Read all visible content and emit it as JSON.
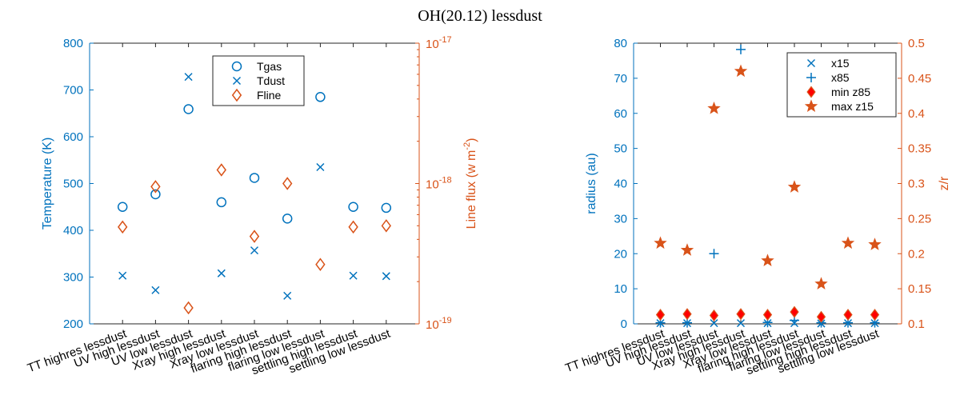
{
  "title": "OH(20.12) lessdust",
  "colors": {
    "blue": "#0072BD",
    "orange": "#D95319",
    "axis": "#262626",
    "diamond_fill": "#FF0000"
  },
  "categories": [
    "TT highres lessdust",
    "UV high lessdust",
    "UV low lessdust",
    "Xray high lessdust",
    "Xray low lessdust",
    "flaring high lessdust",
    "flaring low lessdust",
    "settling high lessdust",
    "settling low lessdust"
  ],
  "chart_data": [
    {
      "type": "scatter",
      "left_axis": {
        "label": "Temperature (K)",
        "ylim": [
          200,
          800
        ],
        "ticks": [
          "200",
          "300",
          "400",
          "500",
          "600",
          "700",
          "800"
        ]
      },
      "right_axis": {
        "label_main": "Line flux (w m",
        "label_sup": "-2",
        "label_close": ")",
        "scale": "log",
        "ylim": [
          1e-19,
          1e-17
        ],
        "ticks": [
          {
            "value": 1e-19,
            "base": "10",
            "exp": "-19"
          },
          {
            "value": 1e-18,
            "base": "10",
            "exp": "-18"
          },
          {
            "value": 1e-17,
            "base": "10",
            "exp": "-17"
          }
        ]
      },
      "legend": {
        "position": "top-right",
        "entries": [
          "Tgas",
          "Tdust",
          "Fline"
        ]
      },
      "series": [
        {
          "name": "Tgas",
          "marker": "circle",
          "axis": "left",
          "values": [
            450,
            477,
            659,
            460,
            512,
            425,
            685,
            450,
            448
          ]
        },
        {
          "name": "Tdust",
          "marker": "x",
          "axis": "left",
          "values": [
            303,
            272,
            728,
            308,
            357,
            260,
            535,
            303,
            302
          ]
        },
        {
          "name": "Fline",
          "marker": "diamond",
          "axis": "right",
          "values": [
            4.9e-19,
            9.5e-19,
            1.3e-19,
            1.25e-18,
            4.2e-19,
            1e-18,
            2.65e-19,
            4.9e-19,
            5e-19
          ]
        }
      ]
    },
    {
      "type": "scatter",
      "left_axis": {
        "label": "radius (au)",
        "ylim": [
          0,
          80
        ],
        "ticks": [
          "0",
          "10",
          "20",
          "30",
          "40",
          "50",
          "60",
          "70",
          "80"
        ]
      },
      "right_axis": {
        "label": "z/r",
        "ylim": [
          0.1,
          0.5
        ],
        "ticks": [
          "0.1",
          "0.15",
          "0.2",
          "0.25",
          "0.3",
          "0.35",
          "0.4",
          "0.45",
          "0.5"
        ]
      },
      "legend": {
        "position": "top-right",
        "entries": [
          "x15",
          "x85",
          "min z85",
          "max z15"
        ]
      },
      "series": [
        {
          "name": "x15",
          "marker": "x",
          "axis": "left",
          "values": [
            0.2,
            0.2,
            0.2,
            0.2,
            0.2,
            0.2,
            0.1,
            0.2,
            0.2
          ]
        },
        {
          "name": "x85",
          "marker": "plus",
          "axis": "left",
          "values": [
            0.3,
            0.3,
            20,
            78.2,
            0.4,
            1.0,
            0.3,
            0.3,
            0.3
          ]
        },
        {
          "name": "min z85",
          "marker": "diamond-filled",
          "axis": "right",
          "values": [
            0.113,
            0.114,
            0.112,
            0.114,
            0.113,
            0.117,
            0.11,
            0.113,
            0.113
          ]
        },
        {
          "name": "max z15",
          "marker": "star",
          "axis": "right",
          "values": [
            0.215,
            0.205,
            0.407,
            0.46,
            0.19,
            0.295,
            0.157,
            0.215,
            0.213
          ]
        }
      ]
    }
  ]
}
